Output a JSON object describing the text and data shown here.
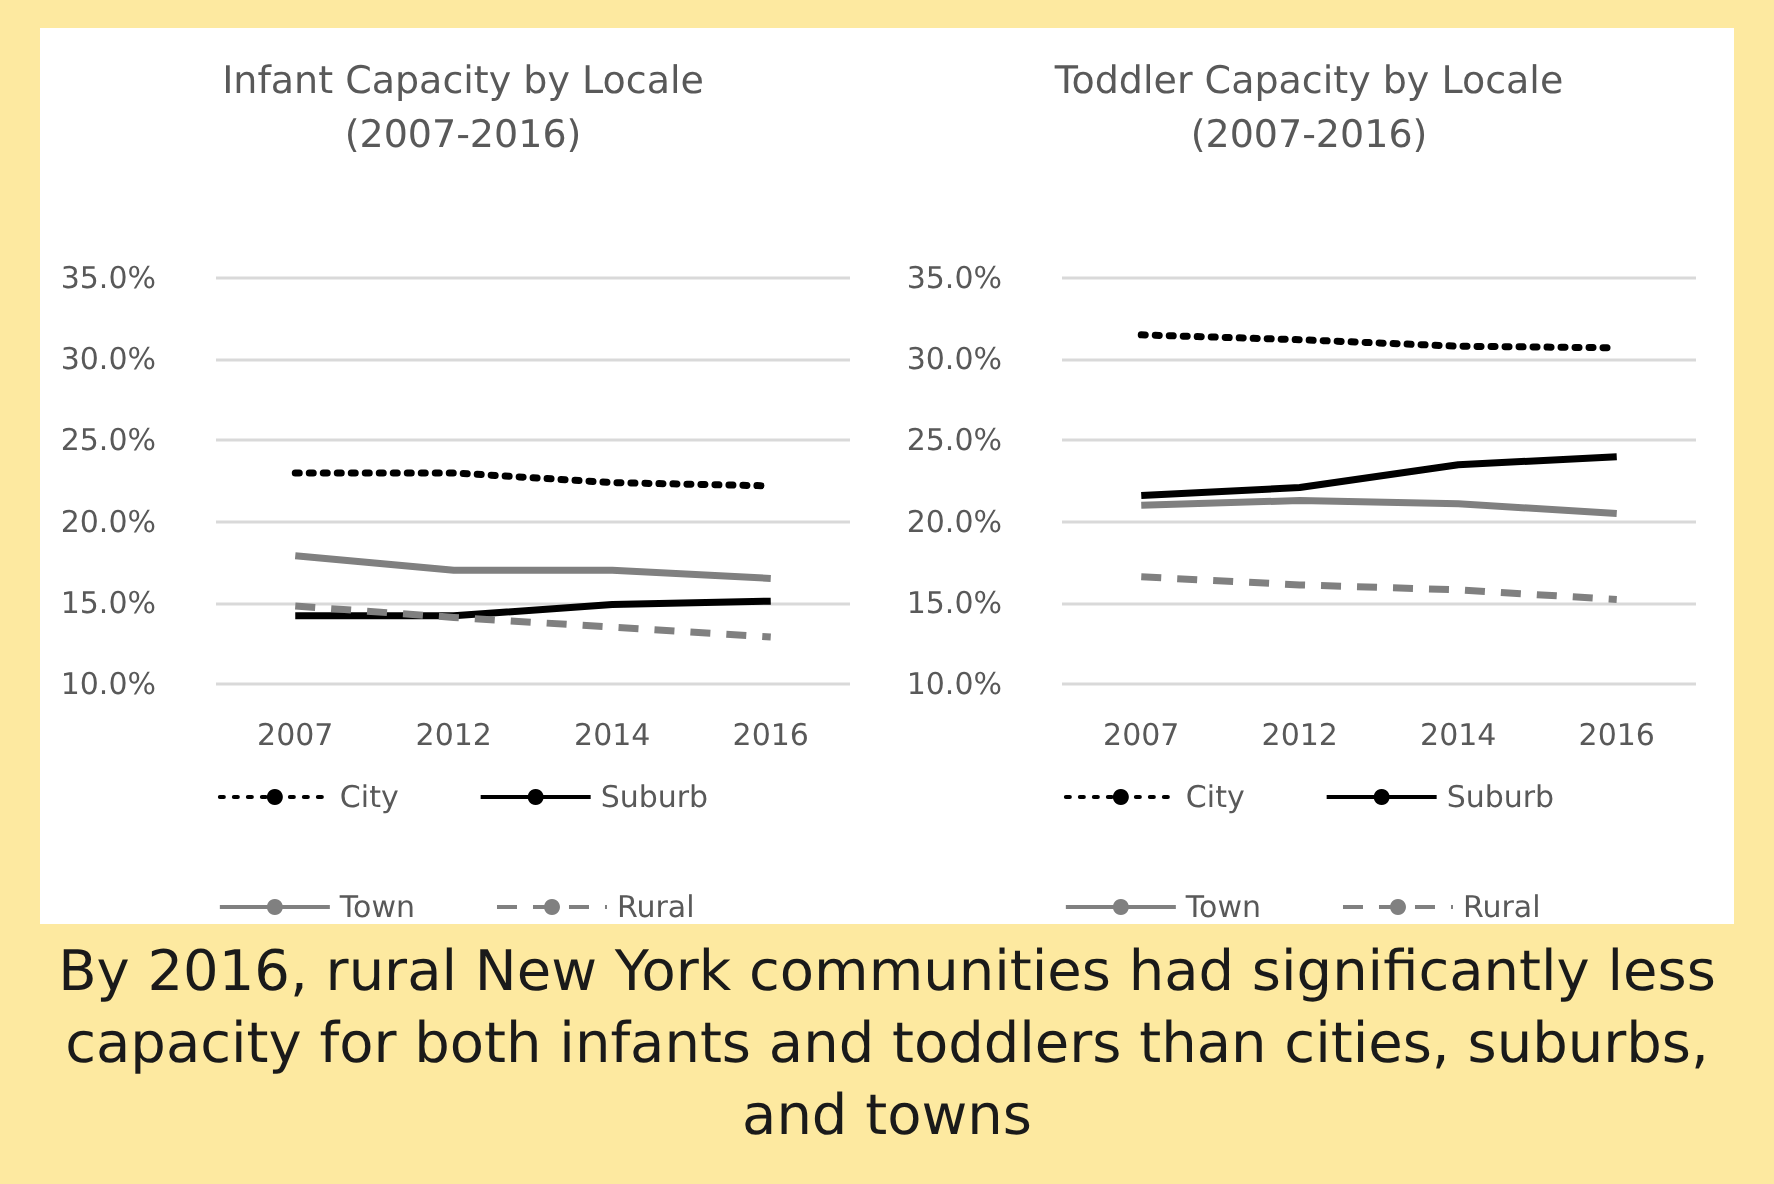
{
  "chart_data": [
    {
      "type": "line",
      "title": "Infant Capacity by Locale",
      "subtitle": "(2007-2016)",
      "categories": [
        "2007",
        "2012",
        "2014",
        "2016"
      ],
      "series": [
        {
          "name": "City",
          "color": "#000000",
          "line_style": "dotted",
          "values": [
            23.0,
            23.0,
            22.4,
            22.2
          ]
        },
        {
          "name": "Suburb",
          "color": "#000000",
          "line_style": "solid",
          "values": [
            14.2,
            14.2,
            14.9,
            15.1
          ]
        },
        {
          "name": "Town",
          "color": "#808080",
          "line_style": "solid",
          "values": [
            17.9,
            17.0,
            17.0,
            16.5
          ]
        },
        {
          "name": "Rural",
          "color": "#808080",
          "line_style": "dashed",
          "values": [
            14.8,
            14.1,
            13.5,
            12.9
          ]
        }
      ],
      "ylim": [
        10,
        35
      ],
      "yticks": [
        {
          "value": 10,
          "label": "10.0%"
        },
        {
          "value": 15,
          "label": "15.0%"
        },
        {
          "value": 20,
          "label": "20.0%"
        },
        {
          "value": 25,
          "label": "25.0%"
        },
        {
          "value": 30,
          "label": "30.0%"
        },
        {
          "value": 35,
          "label": "35.0%"
        }
      ],
      "grid": "y",
      "legend": "bottom",
      "marker": "none",
      "annotations": [
        "By 2016, rural New York communities had significantly less capacity for both infants and toddlers than cities, suburbs, and towns"
      ]
    },
    {
      "type": "line",
      "title": "Toddler Capacity by Locale",
      "subtitle": "(2007-2016)",
      "categories": [
        "2007",
        "2012",
        "2014",
        "2016"
      ],
      "series": [
        {
          "name": "City",
          "color": "#000000",
          "line_style": "dotted",
          "values": [
            31.5,
            31.2,
            30.8,
            30.7
          ]
        },
        {
          "name": "Suburb",
          "color": "#000000",
          "line_style": "solid",
          "values": [
            21.6,
            22.1,
            23.5,
            24.0
          ]
        },
        {
          "name": "Town",
          "color": "#808080",
          "line_style": "solid",
          "values": [
            21.0,
            21.3,
            21.1,
            20.5
          ]
        },
        {
          "name": "Rural",
          "color": "#808080",
          "line_style": "dashed",
          "values": [
            16.6,
            16.1,
            15.8,
            15.2
          ]
        }
      ],
      "ylim": [
        10,
        35
      ],
      "yticks": [
        {
          "value": 10,
          "label": "10.0%"
        },
        {
          "value": 15,
          "label": "15.0%"
        },
        {
          "value": 20,
          "label": "20.0%"
        },
        {
          "value": 25,
          "label": "25.0%"
        },
        {
          "value": 30,
          "label": "30.0%"
        },
        {
          "value": 35,
          "label": "35.0%"
        }
      ],
      "grid": "y",
      "legend": "bottom",
      "marker": "none"
    }
  ]
}
